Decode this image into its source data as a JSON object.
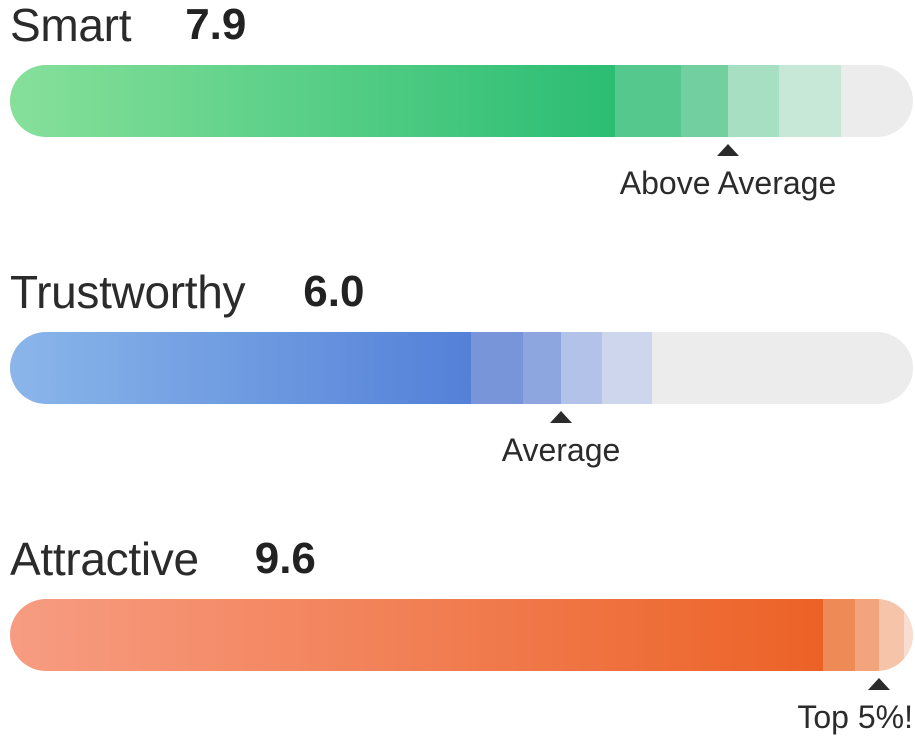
{
  "metrics": [
    {
      "label": "Smart",
      "score": "7.9",
      "rating": "Above Average",
      "fill_fraction": 0.67,
      "marker_fraction": 0.795,
      "colors": {
        "fill_start": "#86e09a",
        "fill_end": "#2bbd73",
        "seg1": "#54c88d",
        "seg2": "#72d0a0",
        "seg3": "#a6dfc2",
        "seg4": "#c7e8d6",
        "track": "#ececec"
      }
    },
    {
      "label": "Trustworthy",
      "score": "6.0",
      "rating": "Average",
      "fill_fraction": 0.51,
      "marker_fraction": 0.61,
      "colors": {
        "fill_start": "#8ab6ea",
        "fill_end": "#5480d8",
        "seg1": "#7995da",
        "seg2": "#8ea6e0",
        "seg3": "#b2c2e8",
        "seg4": "#cdd6ec",
        "track": "#ececec"
      }
    },
    {
      "label": "Attractive",
      "score": "9.6",
      "rating": "Top 5%!",
      "fill_fraction": 0.9,
      "marker_fraction": 0.962,
      "colors": {
        "fill_start": "#f79c82",
        "fill_end": "#ec6226",
        "seg1": "#ee8a55",
        "seg2": "#f2a47c",
        "seg3": "#f6c4a9",
        "seg4": "#f8ddd0",
        "track": "#ececec"
      }
    }
  ]
}
